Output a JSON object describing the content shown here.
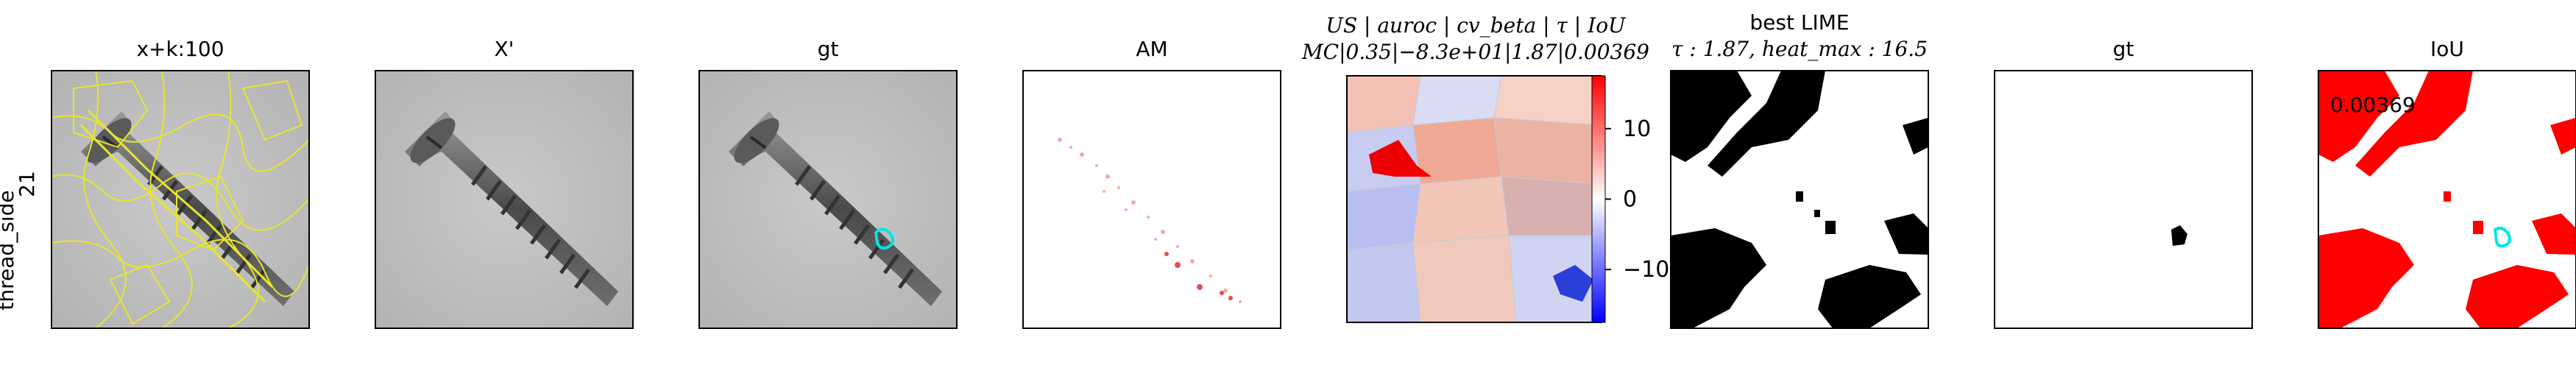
{
  "row_label": {
    "line1": "thread_side",
    "line2": "21"
  },
  "panels": [
    {
      "title": "x+k:100"
    },
    {
      "title": "X'"
    },
    {
      "title": "gt"
    },
    {
      "title": "AM"
    },
    {
      "title_line1": "US | auroc | cv_beta | τ | IoU",
      "title_line2": "MC|0.35|−8.3e+01|1.87|0.00369"
    },
    {
      "title_line1": "best LIME",
      "title_line2": "τ : 1.87, heat_max : 16.5"
    },
    {
      "title": "gt"
    },
    {
      "title": "IoU"
    }
  ],
  "colorbar": {
    "ticks": [
      {
        "value": 10,
        "label": "10"
      },
      {
        "value": 0,
        "label": "0"
      },
      {
        "value": -10,
        "label": "−10"
      }
    ],
    "range": [
      -17.5,
      17.5
    ],
    "colors": {
      "top": "#ff0000",
      "middle": "#ffffff",
      "bottom": "#0000ff"
    }
  },
  "iou_annotation": "0.00369",
  "colors": {
    "superpixel_boundary": "#e6e62e",
    "gt_contour": "#00e5e5",
    "mask_red": "#ff0000",
    "mask_black": "#000000"
  }
}
